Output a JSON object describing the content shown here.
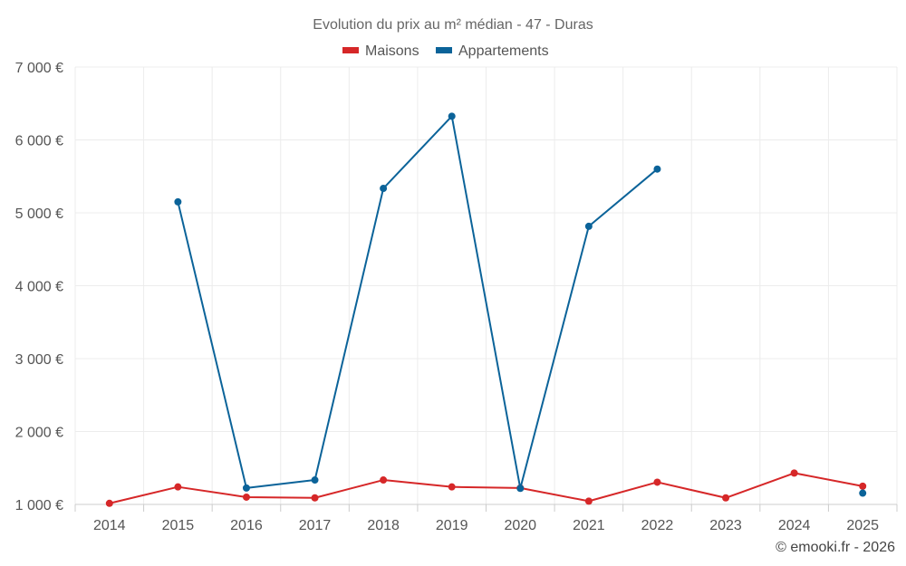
{
  "chart_data": {
    "type": "line",
    "title": "Evolution du prix au m² médian - 47 - Duras",
    "x": [
      "2014",
      "2015",
      "2016",
      "2017",
      "2018",
      "2019",
      "2020",
      "2021",
      "2022",
      "2023",
      "2024",
      "2025"
    ],
    "ylim": [
      1000,
      7000
    ],
    "yticks": [
      {
        "value": 1000,
        "label": "1 000 €"
      },
      {
        "value": 2000,
        "label": "2 000 €"
      },
      {
        "value": 3000,
        "label": "3 000 €"
      },
      {
        "value": 4000,
        "label": "4 000 €"
      },
      {
        "value": 5000,
        "label": "5 000 €"
      },
      {
        "value": 6000,
        "label": "6 000 €"
      },
      {
        "value": 7000,
        "label": "7 000 €"
      }
    ],
    "grid": true,
    "legend_position": "top-center",
    "series": [
      {
        "name": "Maisons",
        "color": "#d62728",
        "values": [
          1015,
          1240,
          1100,
          1090,
          1335,
          1240,
          1225,
          1045,
          1305,
          1090,
          1430,
          1250
        ]
      },
      {
        "name": "Appartements",
        "color": "#0b6399",
        "values": [
          null,
          5150,
          1225,
          1335,
          5335,
          6325,
          1220,
          4815,
          5600,
          null,
          null,
          1155
        ]
      }
    ],
    "credit": "© emooki.fr - 2026"
  }
}
